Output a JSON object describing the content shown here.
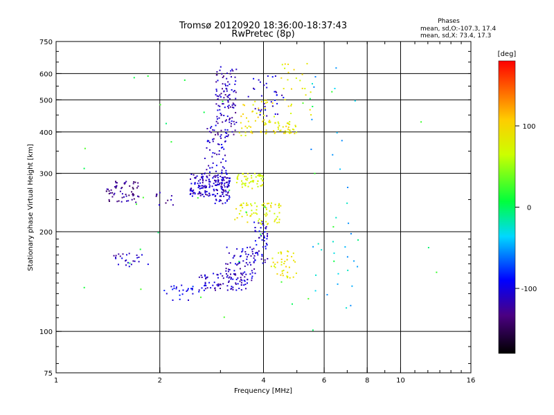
{
  "title_line1": "Tromsø 20120920 18:36:00-18:37:43",
  "title_line2": "RwPretec (8p)",
  "phases": {
    "heading": "Phases",
    "line1": "mean, sd,O:-107.3, 17.4",
    "line2": "mean, sd,X: 73.4, 17.3"
  },
  "chart_data": {
    "type": "scatter",
    "xlabel": "Frequency [MHz]",
    "ylabel": "Stationary phase Virtual Height [km]",
    "x_scale": "log",
    "y_scale": "log",
    "xlim": [
      1,
      16
    ],
    "ylim": [
      75,
      750
    ],
    "grid": true,
    "x_ticks": [
      {
        "value": 1,
        "label": "1"
      },
      {
        "value": 2,
        "label": "2"
      },
      {
        "value": 4,
        "label": "4"
      },
      {
        "value": 6,
        "label": "6"
      },
      {
        "value": 8,
        "label": "8"
      },
      {
        "value": 10,
        "label": "10"
      },
      {
        "value": 16,
        "label": "16"
      }
    ],
    "x_gridlines": [
      2,
      4,
      6,
      8,
      10
    ],
    "y_ticks": [
      {
        "value": 75,
        "label": "75"
      },
      {
        "value": 100,
        "label": "100"
      },
      {
        "value": 200,
        "label": "200"
      },
      {
        "value": 300,
        "label": "300"
      },
      {
        "value": 400,
        "label": "400"
      },
      {
        "value": 500,
        "label": "500"
      },
      {
        "value": 600,
        "label": "600"
      },
      {
        "value": 750,
        "label": "750"
      }
    ],
    "y_gridlines": [
      100,
      200,
      300,
      400,
      500,
      600
    ],
    "colorbar": {
      "label": "[deg]",
      "range": [
        -180,
        180
      ],
      "ticks": [
        {
          "value": 100,
          "label": "100"
        },
        {
          "value": 0,
          "label": "0"
        },
        {
          "value": -100,
          "label": "-100"
        }
      ]
    },
    "clusters": [
      {
        "x": [
          2.45,
          3.2
        ],
        "y": [
          255,
          300
        ],
        "n": 180,
        "phase": -110
      },
      {
        "x": [
          2.7,
          3.15
        ],
        "y": [
          300,
          420
        ],
        "n": 60,
        "phase": -110
      },
      {
        "x": [
          2.9,
          3.35
        ],
        "y": [
          390,
          630
        ],
        "n": 110,
        "phase": -115
      },
      {
        "x": [
          1.4,
          1.75
        ],
        "y": [
          245,
          285
        ],
        "n": 60,
        "phase": -130
      },
      {
        "x": [
          1.95,
          2.2
        ],
        "y": [
          240,
          265
        ],
        "n": 12,
        "phase": -120
      },
      {
        "x": [
          2.85,
          3.2
        ],
        "y": [
          243,
          258
        ],
        "n": 15,
        "phase": -110
      },
      {
        "x": [
          1.45,
          1.85
        ],
        "y": [
          157,
          172
        ],
        "n": 25,
        "phase": -110
      },
      {
        "x": [
          2.05,
          2.6
        ],
        "y": [
          124,
          138
        ],
        "n": 25,
        "phase": -95
      },
      {
        "x": [
          2.6,
          3.6
        ],
        "y": [
          133,
          150
        ],
        "n": 80,
        "phase": -110
      },
      {
        "x": [
          3.1,
          3.8
        ],
        "y": [
          142,
          180
        ],
        "n": 70,
        "phase": -110
      },
      {
        "x": [
          3.75,
          4.15
        ],
        "y": [
          160,
          215
        ],
        "n": 50,
        "phase": -105
      },
      {
        "x": [
          3.4,
          4.3
        ],
        "y": [
          390,
          500
        ],
        "n": 45,
        "phase": 90
      },
      {
        "x": [
          4.0,
          5.0
        ],
        "y": [
          395,
          430
        ],
        "n": 45,
        "phase": 85
      },
      {
        "x": [
          4.5,
          5.5
        ],
        "y": [
          430,
          650
        ],
        "n": 25,
        "phase": 85
      },
      {
        "x": [
          3.3,
          4.0
        ],
        "y": [
          270,
          300
        ],
        "n": 55,
        "phase": 75
      },
      {
        "x": [
          3.3,
          4.5
        ],
        "y": [
          210,
          245
        ],
        "n": 70,
        "phase": 80
      },
      {
        "x": [
          4.2,
          5.0
        ],
        "y": [
          145,
          175
        ],
        "n": 40,
        "phase": 90
      },
      {
        "x": [
          3.6,
          4.6
        ],
        "y": [
          440,
          600
        ],
        "n": 35,
        "phase": -105
      },
      {
        "x": [
          5.5,
          7.5
        ],
        "y": [
          110,
          650
        ],
        "n": 35,
        "phase": -40
      },
      {
        "x": [
          1.1,
          16.0
        ],
        "y": [
          100,
          630
        ],
        "n": 40,
        "phase": 10
      }
    ]
  }
}
